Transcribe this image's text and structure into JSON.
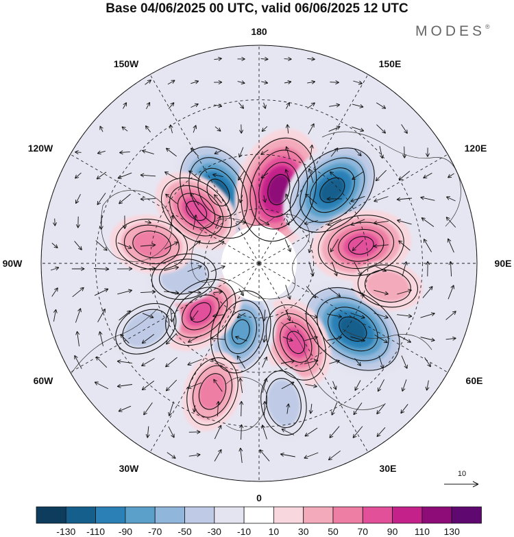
{
  "title": "Base 04/06/2025 00 UTC, valid 06/06/2025 12 UTC",
  "brand": "MODES",
  "brand_mark": "®",
  "longitude_labels": {
    "top": "180",
    "top_left": "150W",
    "top_right": "150E",
    "upper_left": "120W",
    "upper_right": "120E",
    "left": "90W",
    "right": "90E",
    "lower_left": "60W",
    "lower_right": "60E",
    "bottom_left": "30W",
    "bottom_right": "30E",
    "bottom": "0"
  },
  "vector_reference": "10",
  "colorbar": {
    "colors": [
      "#0e3c5c",
      "#155f8c",
      "#2b80b6",
      "#5ba0cb",
      "#90b7db",
      "#bfcbe6",
      "#e4e4f1",
      "#ffffff",
      "#f9d7de",
      "#f3aabb",
      "#ee7ea4",
      "#e2509a",
      "#c4228a",
      "#8e0c78",
      "#5e0870"
    ],
    "labels": [
      "-130",
      "-110",
      "-90",
      "-70",
      "-50",
      "-30",
      "-10",
      "10",
      "30",
      "50",
      "70",
      "90",
      "110",
      "130"
    ]
  },
  "anomaly_centers": [
    {
      "lon": -150,
      "colat": 30,
      "value": -100
    },
    {
      "lon": 165,
      "colat": 28,
      "value": 115
    },
    {
      "lon": 135,
      "colat": 38,
      "value": -100
    },
    {
      "lon": 100,
      "colat": 38,
      "value": 75
    },
    {
      "lon": 55,
      "colat": 42,
      "value": -110
    },
    {
      "lon": 25,
      "colat": 32,
      "value": 60
    },
    {
      "lon": -15,
      "colat": 26,
      "value": -70
    },
    {
      "lon": -50,
      "colat": 28,
      "value": 60
    },
    {
      "lon": -80,
      "colat": 28,
      "value": -30
    },
    {
      "lon": -100,
      "colat": 40,
      "value": 45
    },
    {
      "lon": -130,
      "colat": 30,
      "value": 60
    },
    {
      "lon": -20,
      "colat": 50,
      "value": 40
    },
    {
      "lon": 10,
      "colat": 52,
      "value": -30
    },
    {
      "lon": -60,
      "colat": 48,
      "value": -30
    },
    {
      "lon": 80,
      "colat": 48,
      "value": 20
    }
  ]
}
